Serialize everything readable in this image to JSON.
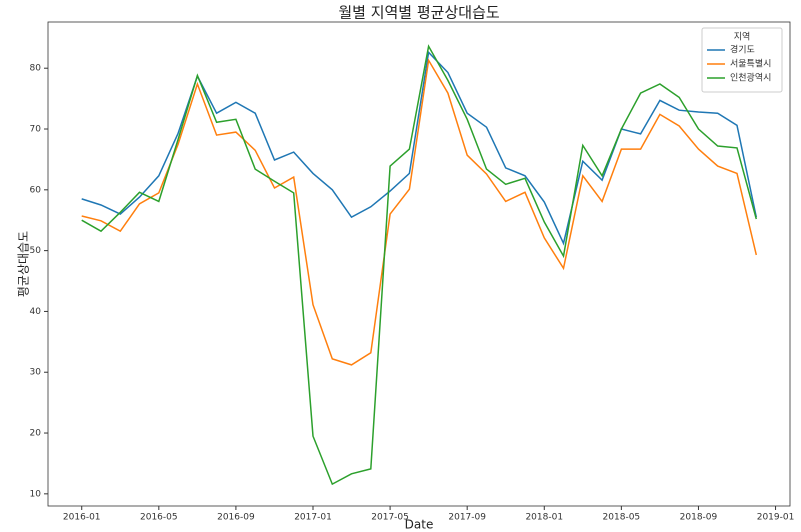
{
  "chart_data": {
    "type": "line",
    "title": "월별 지역별 평균상대습도",
    "x_label": "Date",
    "y_label": "평균상대습도",
    "legend_title": "지역",
    "legend_position": "upper right",
    "x": [
      "2016-01",
      "2016-02",
      "2016-03",
      "2016-04",
      "2016-05",
      "2016-06",
      "2016-07",
      "2016-08",
      "2016-09",
      "2016-10",
      "2016-11",
      "2016-12",
      "2017-01",
      "2017-02",
      "2017-03",
      "2017-04",
      "2017-05",
      "2017-06",
      "2017-07",
      "2017-08",
      "2017-09",
      "2017-10",
      "2017-11",
      "2017-12",
      "2018-01",
      "2018-02",
      "2018-03",
      "2018-04",
      "2018-05",
      "2018-06",
      "2018-07",
      "2018-08",
      "2018-09",
      "2018-10",
      "2018-11",
      "2018-12"
    ],
    "xticks": [
      "2016-01",
      "2016-05",
      "2016-09",
      "2017-01",
      "2017-05",
      "2017-09",
      "2018-01",
      "2018-05",
      "2018-09",
      "2019-01"
    ],
    "ylim": [
      8,
      87.6
    ],
    "yticks": [
      10,
      20,
      30,
      40,
      50,
      60,
      70,
      80
    ],
    "series": [
      {
        "name": "경기도",
        "color": "#1f77b4",
        "values": [
          58.5,
          57.5,
          56.0,
          58.8,
          62.3,
          69.3,
          78.7,
          72.6,
          74.4,
          72.6,
          64.9,
          66.2,
          62.7,
          60.0,
          55.5,
          57.2,
          59.8,
          62.7,
          82.6,
          79.3,
          72.6,
          70.3,
          63.6,
          62.3,
          58.0,
          51.2,
          64.7,
          61.6,
          70.0,
          69.2,
          74.7,
          73.1,
          72.8,
          72.6,
          70.6,
          55.5
        ]
      },
      {
        "name": "서울특별시",
        "color": "#ff7f0e",
        "values": [
          55.7,
          54.9,
          53.2,
          57.7,
          59.5,
          67.5,
          77.4,
          69.0,
          69.5,
          66.5,
          60.3,
          62.1,
          41.1,
          32.2,
          31.2,
          33.2,
          56.0,
          60.1,
          81.3,
          75.9,
          65.7,
          62.6,
          58.1,
          59.6,
          52.1,
          47.1,
          62.3,
          58.1,
          66.7,
          66.7,
          72.4,
          70.5,
          66.7,
          63.9,
          62.7,
          49.3
        ]
      },
      {
        "name": "인천광역시",
        "color": "#2ca02c",
        "values": [
          55.0,
          53.2,
          56.3,
          59.6,
          58.1,
          68.3,
          78.8,
          71.1,
          71.6,
          63.4,
          61.4,
          59.5,
          19.5,
          11.6,
          13.3,
          14.1,
          63.9,
          66.7,
          83.6,
          78.0,
          71.6,
          63.4,
          60.9,
          61.9,
          54.7,
          49.1,
          67.3,
          62.3,
          70.0,
          75.9,
          77.4,
          75.2,
          70.0,
          67.2,
          66.9,
          55.2
        ]
      }
    ]
  }
}
